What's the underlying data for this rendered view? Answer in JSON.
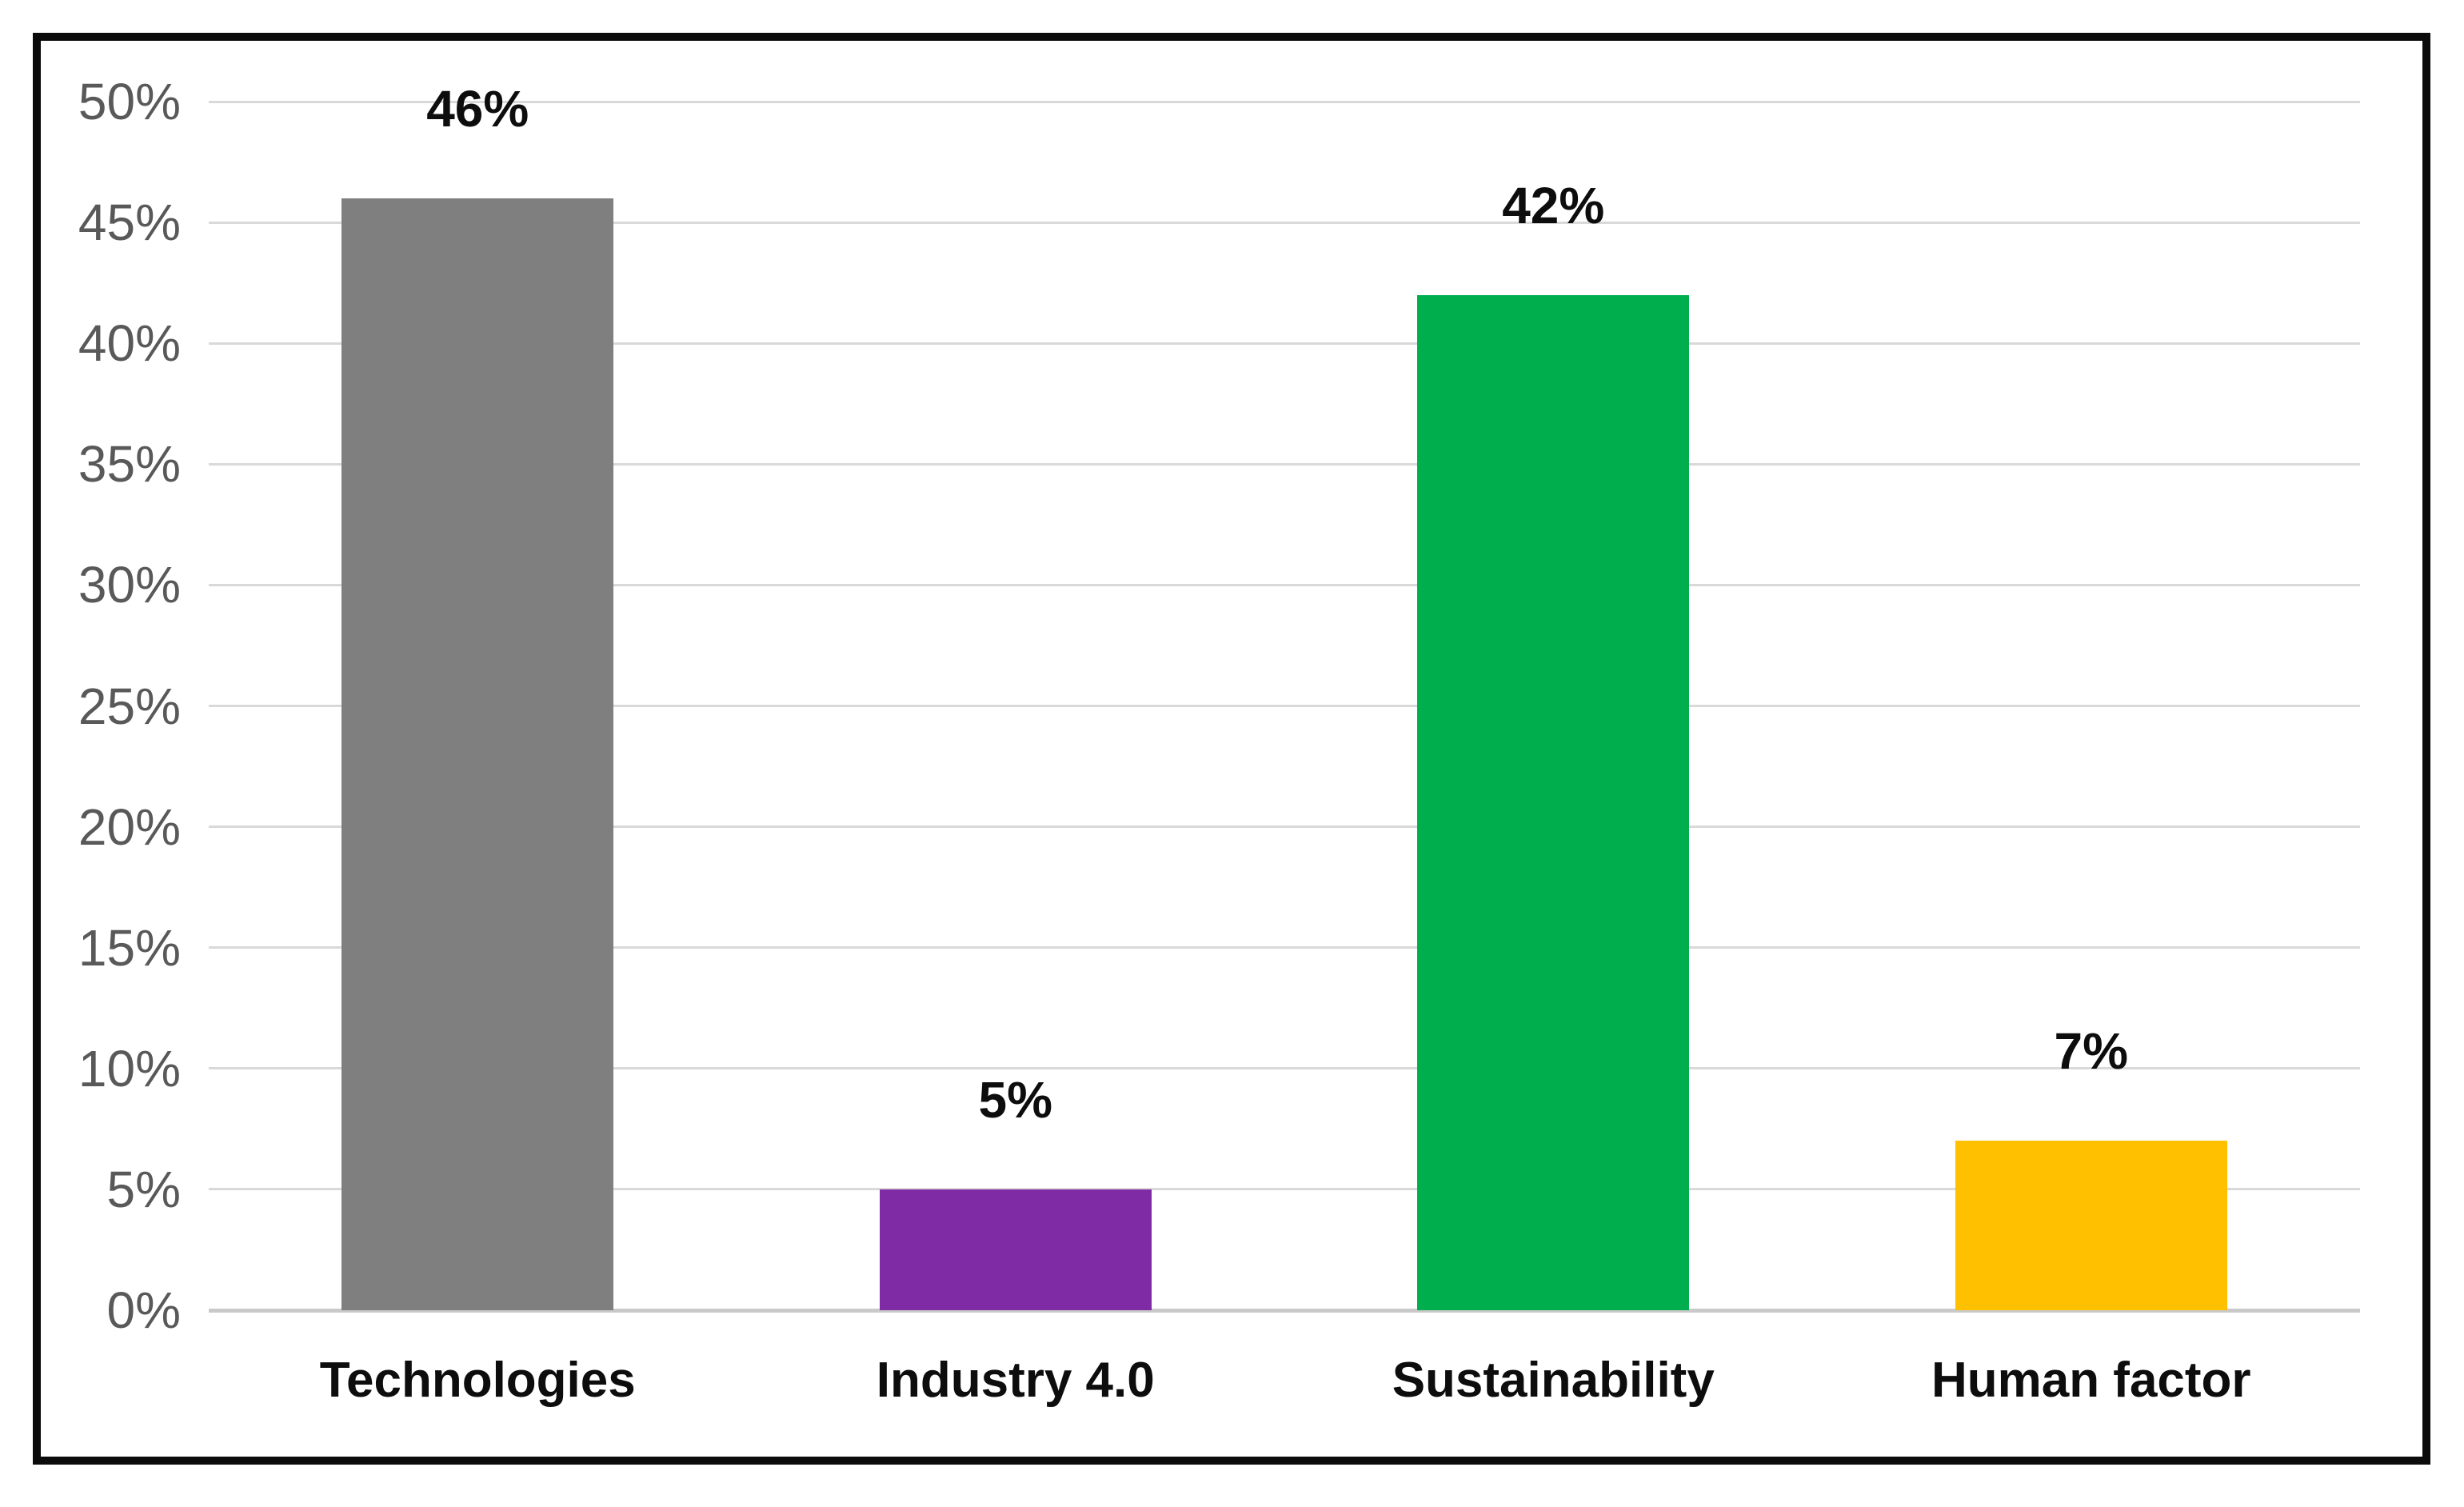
{
  "chart_data": {
    "type": "bar",
    "title": "",
    "xlabel": "",
    "ylabel": "",
    "categories": [
      "Technologies",
      "Industry 4.0",
      "Sustainability",
      "Human factor"
    ],
    "values": [
      46,
      5,
      42,
      7
    ],
    "data_labels": [
      "46%",
      "5%",
      "42%",
      "7%"
    ],
    "bar_colors": [
      "#7F7F7F",
      "#7F2BA6",
      "#00AE4E",
      "#FFC000"
    ],
    "ylim": [
      0,
      50
    ],
    "y_tick_values": [
      0,
      5,
      10,
      15,
      20,
      25,
      30,
      35,
      40,
      45,
      50
    ],
    "y_tick_labels": [
      "0%",
      "5%",
      "10%",
      "15%",
      "20%",
      "25%",
      "30%",
      "35%",
      "40%",
      "45%",
      "50%"
    ],
    "grid": true,
    "legend": "none",
    "colors": {
      "gridline": "#D9D9D9",
      "axis_baseline": "#C9C9C9",
      "tick_label": "#595959",
      "data_label": "#0D0D0D",
      "category_label": "#0D0D0D",
      "frame_border": "#0B0B0B",
      "background": "#FFFFFF"
    }
  }
}
